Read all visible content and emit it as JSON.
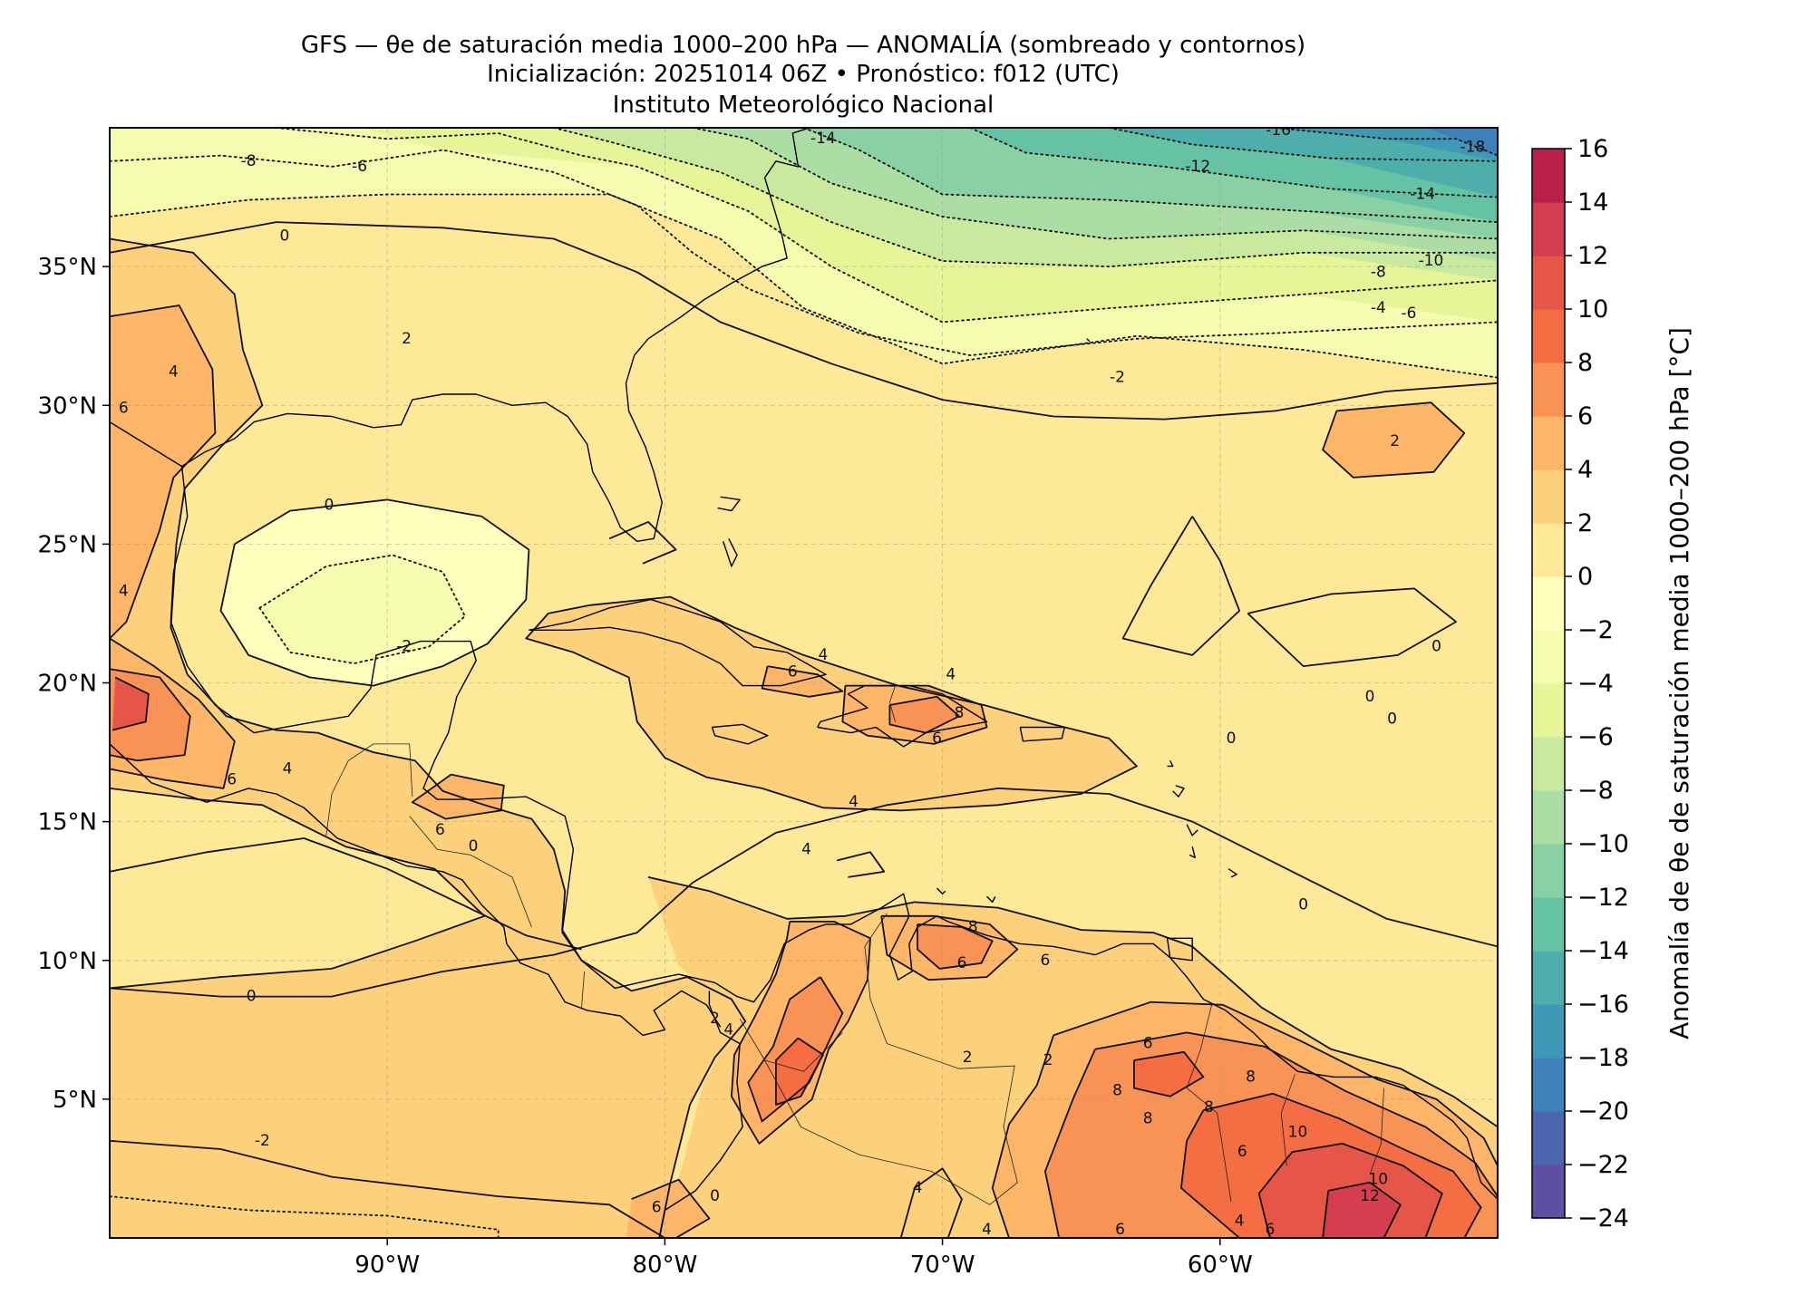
{
  "title": {
    "line1": "GFS — θe de saturación media 1000–200 hPa — ANOMALÍA (sombreado y contornos)",
    "line2": "Inicialización: 20251014 06Z   •   Pronóstico: f012 (UTC)",
    "line3": "Instituto Meteorológico Nacional"
  },
  "map": {
    "lon_range": [
      -100,
      -50
    ],
    "lat_range": [
      0,
      40
    ],
    "lon_ticks": [
      {
        "value": -90,
        "label": "90°W"
      },
      {
        "value": -80,
        "label": "80°W"
      },
      {
        "value": -70,
        "label": "70°W"
      },
      {
        "value": -60,
        "label": "60°W"
      }
    ],
    "lat_ticks": [
      {
        "value": 35,
        "label": "35°N"
      },
      {
        "value": 30,
        "label": "30°N"
      },
      {
        "value": 25,
        "label": "25°N"
      },
      {
        "value": 20,
        "label": "20°N"
      },
      {
        "value": 15,
        "label": "15°N"
      },
      {
        "value": 10,
        "label": "10°N"
      },
      {
        "value": 5,
        "label": "5°N"
      }
    ],
    "gridlines": true,
    "contour_labels": [
      {
        "lon": -91,
        "lat": 38.6,
        "text": "-6"
      },
      {
        "lon": -95,
        "lat": 38.8,
        "text": "-8"
      },
      {
        "lon": -93.7,
        "lat": 36.1,
        "text": "0"
      },
      {
        "lon": -89.3,
        "lat": 32.4,
        "text": "2"
      },
      {
        "lon": -97.7,
        "lat": 31.2,
        "text": "4"
      },
      {
        "lon": -99.5,
        "lat": 29.9,
        "text": "6"
      },
      {
        "lon": -92.1,
        "lat": 26.4,
        "text": "0"
      },
      {
        "lon": -89.4,
        "lat": 21.3,
        "text": "-2"
      },
      {
        "lon": -99.5,
        "lat": 23.3,
        "text": "4"
      },
      {
        "lon": -95.6,
        "lat": 16.5,
        "text": "6"
      },
      {
        "lon": -93.6,
        "lat": 16.9,
        "text": "4"
      },
      {
        "lon": -88.1,
        "lat": 14.7,
        "text": "6"
      },
      {
        "lon": -86.9,
        "lat": 14.1,
        "text": "0"
      },
      {
        "lon": -94.9,
        "lat": 8.7,
        "text": "0"
      },
      {
        "lon": -94.5,
        "lat": 3.5,
        "text": "-2"
      },
      {
        "lon": -75.4,
        "lat": 20.4,
        "text": "6"
      },
      {
        "lon": -74.3,
        "lat": 21.0,
        "text": "4"
      },
      {
        "lon": -69.7,
        "lat": 20.3,
        "text": "4"
      },
      {
        "lon": -69.4,
        "lat": 18.9,
        "text": "8"
      },
      {
        "lon": -70.2,
        "lat": 18.0,
        "text": "6"
      },
      {
        "lon": -73.2,
        "lat": 15.7,
        "text": "4"
      },
      {
        "lon": -74.9,
        "lat": 14.0,
        "text": "4"
      },
      {
        "lon": -78.2,
        "lat": 7.9,
        "text": "2"
      },
      {
        "lon": -77.7,
        "lat": 7.5,
        "text": "4"
      },
      {
        "lon": -68.9,
        "lat": 11.2,
        "text": "8"
      },
      {
        "lon": -69.3,
        "lat": 9.9,
        "text": "6"
      },
      {
        "lon": -66.3,
        "lat": 10.0,
        "text": "6"
      },
      {
        "lon": -69.1,
        "lat": 6.5,
        "text": "2"
      },
      {
        "lon": -66.2,
        "lat": 6.4,
        "text": "2"
      },
      {
        "lon": -62.6,
        "lat": 7.0,
        "text": "6"
      },
      {
        "lon": -63.7,
        "lat": 5.3,
        "text": "8"
      },
      {
        "lon": -62.6,
        "lat": 4.3,
        "text": "8"
      },
      {
        "lon": -58.9,
        "lat": 5.8,
        "text": "8"
      },
      {
        "lon": -60.4,
        "lat": 4.7,
        "text": "8"
      },
      {
        "lon": -57.2,
        "lat": 3.8,
        "text": "10"
      },
      {
        "lon": -59.2,
        "lat": 3.1,
        "text": "6"
      },
      {
        "lon": -54.3,
        "lat": 2.1,
        "text": "10"
      },
      {
        "lon": -54.6,
        "lat": 1.5,
        "text": "12"
      },
      {
        "lon": -70.9,
        "lat": 1.8,
        "text": "4"
      },
      {
        "lon": -78.2,
        "lat": 1.5,
        "text": "0"
      },
      {
        "lon": -80.3,
        "lat": 1.1,
        "text": "6"
      },
      {
        "lon": -68.4,
        "lat": 0.3,
        "text": "4"
      },
      {
        "lon": -63.6,
        "lat": 0.3,
        "text": "6"
      },
      {
        "lon": -59.3,
        "lat": 0.6,
        "text": "4"
      },
      {
        "lon": -58.2,
        "lat": 0.3,
        "text": "6"
      },
      {
        "lon": -52.2,
        "lat": 21.3,
        "text": "0"
      },
      {
        "lon": -53.8,
        "lat": 18.7,
        "text": "0"
      },
      {
        "lon": -54.6,
        "lat": 19.5,
        "text": "0"
      },
      {
        "lon": -59.6,
        "lat": 18.0,
        "text": "0"
      },
      {
        "lon": -57.0,
        "lat": 12.0,
        "text": "0"
      },
      {
        "lon": -53.7,
        "lat": 28.7,
        "text": "2"
      },
      {
        "lon": -63.7,
        "lat": 31.0,
        "text": "-2"
      },
      {
        "lon": -53.2,
        "lat": 33.3,
        "text": "-6"
      },
      {
        "lon": -54.3,
        "lat": 33.5,
        "text": "-4"
      },
      {
        "lon": -54.3,
        "lat": 34.8,
        "text": "-8"
      },
      {
        "lon": -52.4,
        "lat": 35.2,
        "text": "-10"
      },
      {
        "lon": -52.7,
        "lat": 37.6,
        "text": "-14"
      },
      {
        "lon": -60.8,
        "lat": 38.6,
        "text": "-12"
      },
      {
        "lon": -57.9,
        "lat": 39.9,
        "text": "-16"
      },
      {
        "lon": -50.9,
        "lat": 39.3,
        "text": "-18"
      },
      {
        "lon": -74.3,
        "lat": 39.6,
        "text": "-14"
      }
    ]
  },
  "colorbar": {
    "label": "Anomalía de θe de saturación media 1000–200 hPa [°C]",
    "levels": [
      -24,
      -22,
      -20,
      -18,
      -16,
      -14,
      -12,
      -10,
      -8,
      -6,
      -4,
      -2,
      0,
      2,
      4,
      6,
      8,
      10,
      12,
      14,
      16
    ],
    "tick_labels": [
      "−24",
      "−22",
      "−20",
      "−18",
      "−16",
      "−14",
      "−12",
      "−10",
      "−8",
      "−6",
      "−4",
      "−2",
      "0",
      "2",
      "4",
      "6",
      "8",
      "10",
      "12",
      "14",
      "16"
    ],
    "colors": [
      "#5e4fa2",
      "#4b65ae",
      "#3e80b9",
      "#3f98b5",
      "#4eaeab",
      "#66c2a5",
      "#89d0a4",
      "#abdda4",
      "#c9e99e",
      "#e6f598",
      "#f5fbaf",
      "#fefebd",
      "#fee999",
      "#fdd07b",
      "#fdb567",
      "#f99355",
      "#f46d43",
      "#e55649",
      "#d53e4f",
      "#b91f48",
      "#9e0142"
    ]
  }
}
